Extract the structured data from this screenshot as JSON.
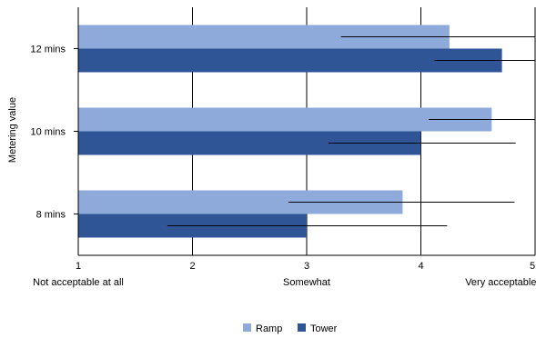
{
  "chart_data": {
    "type": "bar",
    "orientation": "horizontal",
    "title": "",
    "xlabel": "",
    "ylabel": "Metering value",
    "xlim": [
      1,
      5
    ],
    "x_ticks": [
      1,
      2,
      3,
      4,
      5
    ],
    "x_tick_descriptions": [
      "Not acceptable at all",
      "Somewhat",
      "Very acceptable"
    ],
    "x_tick_description_values": [
      1,
      3,
      4.7
    ],
    "grid": "vertical",
    "legend_position": "bottom",
    "categories": [
      "12 mins",
      "10 mins",
      "8 mins"
    ],
    "series": [
      {
        "name": "Ramp",
        "color": "#8eaadb",
        "values": [
          4.25,
          4.62,
          3.84
        ],
        "error_low": [
          3.3,
          4.07,
          2.84
        ],
        "error_high": [
          5.2,
          5.17,
          4.82
        ]
      },
      {
        "name": "Tower",
        "color": "#2f5597",
        "values": [
          4.71,
          4.0,
          3.0
        ],
        "error_low": [
          4.12,
          3.19,
          1.78
        ],
        "error_high": [
          5.3,
          4.83,
          4.23
        ]
      }
    ]
  }
}
